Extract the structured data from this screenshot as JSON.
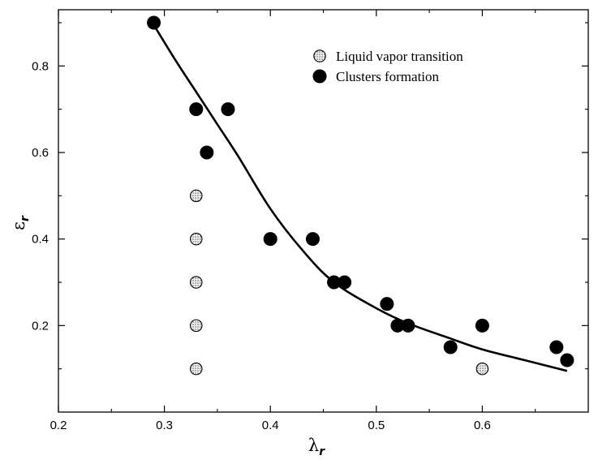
{
  "chart_data": {
    "type": "scatter",
    "title": "",
    "xlabel": {
      "symbol": "λ",
      "subscript": "r"
    },
    "ylabel": {
      "symbol": "ε",
      "subscript": "r"
    },
    "xlim": [
      0.2,
      0.7
    ],
    "ylim": [
      0.0,
      0.93
    ],
    "xticks": [
      0.2,
      0.3,
      0.4,
      0.5,
      0.6
    ],
    "xtick_labels": [
      "0.2",
      "0.3",
      "0.4",
      "0.5",
      "0.6"
    ],
    "yticks": [
      0.2,
      0.4,
      0.6,
      0.8
    ],
    "ytick_labels": [
      "0.2",
      "0.4",
      "0.6",
      "0.8"
    ],
    "grid": false,
    "legend_position": "top-right",
    "series": [
      {
        "name": "Liquid vapor transition",
        "marker": "hatched-circle",
        "color": "#d9d9d9",
        "points": [
          {
            "x": 0.33,
            "y": 0.5
          },
          {
            "x": 0.33,
            "y": 0.4
          },
          {
            "x": 0.33,
            "y": 0.3
          },
          {
            "x": 0.33,
            "y": 0.2
          },
          {
            "x": 0.33,
            "y": 0.1
          },
          {
            "x": 0.6,
            "y": 0.1
          }
        ]
      },
      {
        "name": "Clusters formation",
        "marker": "filled-circle",
        "color": "#000000",
        "points": [
          {
            "x": 0.29,
            "y": 0.9
          },
          {
            "x": 0.33,
            "y": 0.7
          },
          {
            "x": 0.36,
            "y": 0.7
          },
          {
            "x": 0.34,
            "y": 0.6
          },
          {
            "x": 0.4,
            "y": 0.4
          },
          {
            "x": 0.44,
            "y": 0.4
          },
          {
            "x": 0.46,
            "y": 0.3
          },
          {
            "x": 0.47,
            "y": 0.3
          },
          {
            "x": 0.51,
            "y": 0.25
          },
          {
            "x": 0.52,
            "y": 0.2
          },
          {
            "x": 0.53,
            "y": 0.2
          },
          {
            "x": 0.57,
            "y": 0.15
          },
          {
            "x": 0.6,
            "y": 0.2
          },
          {
            "x": 0.67,
            "y": 0.15
          },
          {
            "x": 0.68,
            "y": 0.12
          }
        ]
      }
    ],
    "fit_curve": {
      "name": "fit",
      "x": [
        0.29,
        0.31,
        0.33,
        0.35,
        0.37,
        0.4,
        0.43,
        0.46,
        0.5,
        0.53,
        0.57,
        0.6,
        0.64,
        0.68
      ],
      "y": [
        0.895,
        0.815,
        0.74,
        0.665,
        0.59,
        0.47,
        0.375,
        0.3,
        0.24,
        0.205,
        0.17,
        0.145,
        0.12,
        0.095
      ]
    }
  }
}
